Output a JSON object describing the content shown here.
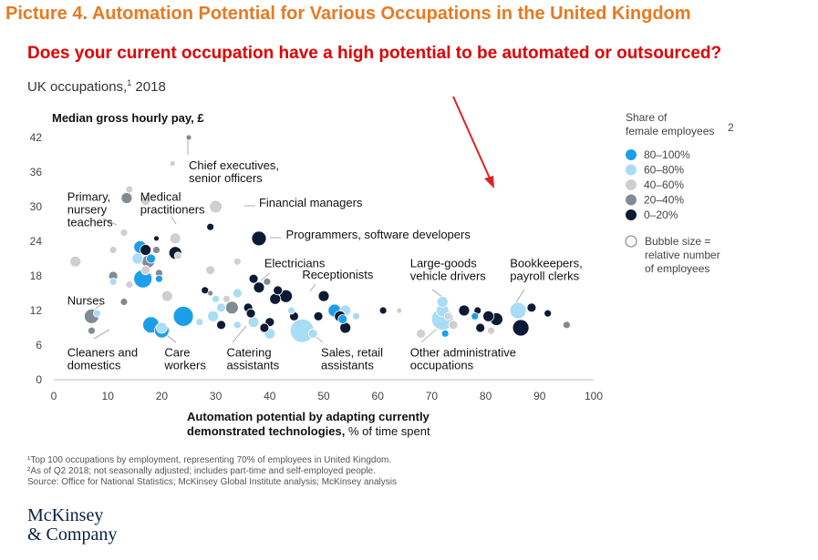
{
  "picture_title": "Picture 4. Automation Potential for Various Occupations in the United Kingdom",
  "question": "Does your current occupation have a high potential to be automated or outsourced?",
  "subtitle": {
    "text": "UK occupations,",
    "sup": "1",
    "year": " 2018"
  },
  "colors": {
    "title": "#e8791f",
    "question": "#e00000",
    "arrow": "#e02020",
    "bins": {
      "80-100": "#1d9ee8",
      "60-80": "#a9dcf5",
      "40-60": "#cfcfcf",
      "20-40": "#838b92",
      "0-20": "#0c1b33"
    }
  },
  "chart_data": {
    "type": "scatter",
    "subtype": "bubble",
    "title": "",
    "ylabel": "Median gross hourly pay, £",
    "xlabel_bold_line1": "Automation potential by adapting currently",
    "xlabel_bold_line2": "demonstrated technologies,",
    "xlabel_rest": " % of time spent",
    "xlim": [
      0,
      100
    ],
    "ylim": [
      0,
      42
    ],
    "xticks": [
      "0",
      "10",
      "20",
      "30",
      "40",
      "50",
      "60",
      "70",
      "80",
      "90",
      "100"
    ],
    "yticks": [
      "0",
      "6",
      "12",
      "18",
      "24",
      "30",
      "36",
      "42"
    ],
    "grid": false,
    "legend": {
      "title_line1": "Share of",
      "title_line2": "female employees",
      "title_sup": "2",
      "placement": "right",
      "entries": [
        {
          "label": "80–100%",
          "bin": "80-100"
        },
        {
          "label": "60–80%",
          "bin": "60-80"
        },
        {
          "label": "40–60%",
          "bin": "40-60"
        },
        {
          "label": "20–40%",
          "bin": "20-40"
        },
        {
          "label": "0–20%",
          "bin": "0-20"
        }
      ],
      "size_note": [
        "Bubble size =",
        "relative number",
        "of employees"
      ]
    },
    "annotations": [
      {
        "lines": [
          "Chief executives,",
          "senior officers"
        ],
        "x": 25,
        "y": 36.5
      },
      {
        "lines": [
          "Primary,",
          "nursery",
          "teachers"
        ],
        "x": 2.5,
        "y": 31
      },
      {
        "lines": [
          "Medical",
          "practitioners"
        ],
        "x": 16,
        "y": 31
      },
      {
        "lines": [
          "Financial managers"
        ],
        "x": 38,
        "y": 30
      },
      {
        "lines": [
          "Programmers, software developers"
        ],
        "x": 43,
        "y": 24.5
      },
      {
        "lines": [
          "Electricians"
        ],
        "x": 39,
        "y": 19.5
      },
      {
        "lines": [
          "Receptionists"
        ],
        "x": 46,
        "y": 17.5
      },
      {
        "lines": [
          "Large-goods",
          "vehicle drivers"
        ],
        "x": 66,
        "y": 19.5
      },
      {
        "lines": [
          "Bookkeepers,",
          "payroll clerks"
        ],
        "x": 84.5,
        "y": 19.5
      },
      {
        "lines": [
          "Nurses"
        ],
        "x": 2.5,
        "y": 13
      },
      {
        "lines": [
          "Cleaners and",
          "domestics"
        ],
        "x": 2.5,
        "y": 4
      },
      {
        "lines": [
          "Care",
          "workers"
        ],
        "x": 20.5,
        "y": 4
      },
      {
        "lines": [
          "Catering",
          "assistants"
        ],
        "x": 32,
        "y": 4
      },
      {
        "lines": [
          "Sales, retail",
          "assistants"
        ],
        "x": 49.5,
        "y": 4
      },
      {
        "lines": [
          "Other administrative",
          "occupations"
        ],
        "x": 66,
        "y": 4
      }
    ],
    "points": [
      {
        "x": 25,
        "y": 42,
        "r": 3,
        "bin": "20-40"
      },
      {
        "x": 22,
        "y": 37.5,
        "r": 3,
        "bin": "40-60"
      },
      {
        "x": 14,
        "y": 33,
        "r": 4,
        "bin": "40-60"
      },
      {
        "x": 13.5,
        "y": 31.5,
        "r": 6,
        "bin": "20-40"
      },
      {
        "x": 17,
        "y": 31,
        "r": 5,
        "bin": "40-60"
      },
      {
        "x": 30,
        "y": 30,
        "r": 7,
        "bin": "40-60"
      },
      {
        "x": 29,
        "y": 26.5,
        "r": 4,
        "bin": "0-20"
      },
      {
        "x": 13,
        "y": 25.5,
        "r": 4,
        "bin": "40-60"
      },
      {
        "x": 22.5,
        "y": 24.5,
        "r": 6,
        "bin": "40-60"
      },
      {
        "x": 19,
        "y": 24.5,
        "r": 3,
        "bin": "0-20"
      },
      {
        "x": 38,
        "y": 24.5,
        "r": 8,
        "bin": "0-20"
      },
      {
        "x": 16,
        "y": 23,
        "r": 7,
        "bin": "80-100"
      },
      {
        "x": 11,
        "y": 22.5,
        "r": 4,
        "bin": "40-60"
      },
      {
        "x": 17,
        "y": 22.5,
        "r": 6,
        "bin": "0-20"
      },
      {
        "x": 19,
        "y": 22.5,
        "r": 4,
        "bin": "20-40"
      },
      {
        "x": 22.5,
        "y": 22,
        "r": 7,
        "bin": "0-20"
      },
      {
        "x": 23,
        "y": 21.5,
        "r": 4,
        "bin": "40-60"
      },
      {
        "x": 15.5,
        "y": 21,
        "r": 6,
        "bin": "60-80"
      },
      {
        "x": 18,
        "y": 21,
        "r": 5,
        "bin": "80-100"
      },
      {
        "x": 4,
        "y": 20.5,
        "r": 6,
        "bin": "40-60"
      },
      {
        "x": 17.5,
        "y": 20.5,
        "r": 7,
        "bin": "20-40"
      },
      {
        "x": 34,
        "y": 20.5,
        "r": 4,
        "bin": "40-60"
      },
      {
        "x": 17,
        "y": 19,
        "r": 5,
        "bin": "40-60"
      },
      {
        "x": 29,
        "y": 19,
        "r": 5,
        "bin": "40-60"
      },
      {
        "x": 19.5,
        "y": 18.5,
        "r": 4,
        "bin": "20-40"
      },
      {
        "x": 11,
        "y": 18,
        "r": 5,
        "bin": "20-40"
      },
      {
        "x": 16.5,
        "y": 17.5,
        "r": 10,
        "bin": "80-100"
      },
      {
        "x": 19.5,
        "y": 17.5,
        "r": 4,
        "bin": "80-100"
      },
      {
        "x": 11,
        "y": 17,
        "r": 4,
        "bin": "60-80"
      },
      {
        "x": 37,
        "y": 17.5,
        "r": 5,
        "bin": "0-20"
      },
      {
        "x": 39.5,
        "y": 17,
        "r": 4,
        "bin": "20-40"
      },
      {
        "x": 14,
        "y": 16.5,
        "r": 4,
        "bin": "40-60"
      },
      {
        "x": 38,
        "y": 16,
        "r": 6,
        "bin": "0-20"
      },
      {
        "x": 41.5,
        "y": 15.5,
        "r": 5,
        "bin": "0-20"
      },
      {
        "x": 28,
        "y": 15.5,
        "r": 4,
        "bin": "0-20"
      },
      {
        "x": 29,
        "y": 15,
        "r": 3,
        "bin": "20-40"
      },
      {
        "x": 43,
        "y": 14.5,
        "r": 7,
        "bin": "0-20"
      },
      {
        "x": 50,
        "y": 14.5,
        "r": 6,
        "bin": "0-20"
      },
      {
        "x": 34,
        "y": 15,
        "r": 5,
        "bin": "60-80"
      },
      {
        "x": 21,
        "y": 14.5,
        "r": 6,
        "bin": "40-60"
      },
      {
        "x": 41,
        "y": 14,
        "r": 6,
        "bin": "0-20"
      },
      {
        "x": 32,
        "y": 14,
        "r": 4,
        "bin": "40-60"
      },
      {
        "x": 30,
        "y": 14,
        "r": 4,
        "bin": "60-80"
      },
      {
        "x": 13,
        "y": 13.5,
        "r": 4,
        "bin": "20-40"
      },
      {
        "x": 72,
        "y": 13.5,
        "r": 6,
        "bin": "60-80"
      },
      {
        "x": 33,
        "y": 12.5,
        "r": 7,
        "bin": "20-40"
      },
      {
        "x": 36,
        "y": 12.5,
        "r": 5,
        "bin": "0-20"
      },
      {
        "x": 31,
        "y": 12.5,
        "r": 5,
        "bin": "60-80"
      },
      {
        "x": 44,
        "y": 12,
        "r": 4,
        "bin": "60-80"
      },
      {
        "x": 52,
        "y": 12,
        "r": 7,
        "bin": "80-100"
      },
      {
        "x": 54,
        "y": 12,
        "r": 6,
        "bin": "60-80"
      },
      {
        "x": 64,
        "y": 12,
        "r": 3,
        "bin": "40-60"
      },
      {
        "x": 61,
        "y": 12,
        "r": 4,
        "bin": "0-20"
      },
      {
        "x": 72,
        "y": 12,
        "r": 7,
        "bin": "60-80"
      },
      {
        "x": 76,
        "y": 12,
        "r": 6,
        "bin": "0-20"
      },
      {
        "x": 78.5,
        "y": 12,
        "r": 4,
        "bin": "0-20"
      },
      {
        "x": 86,
        "y": 12,
        "r": 9,
        "bin": "60-80"
      },
      {
        "x": 88.5,
        "y": 12.5,
        "r": 5,
        "bin": "0-20"
      },
      {
        "x": 91.5,
        "y": 11.5,
        "r": 4,
        "bin": "0-20"
      },
      {
        "x": 36.5,
        "y": 11.5,
        "r": 5,
        "bin": "0-20"
      },
      {
        "x": 44.5,
        "y": 11,
        "r": 5,
        "bin": "0-20"
      },
      {
        "x": 49,
        "y": 11,
        "r": 5,
        "bin": "0-20"
      },
      {
        "x": 53,
        "y": 11,
        "r": 6,
        "bin": "0-20"
      },
      {
        "x": 53.5,
        "y": 10.5,
        "r": 5,
        "bin": "80-100"
      },
      {
        "x": 56,
        "y": 11,
        "r": 4,
        "bin": "60-80"
      },
      {
        "x": 7,
        "y": 11,
        "r": 8,
        "bin": "20-40"
      },
      {
        "x": 8,
        "y": 11.5,
        "r": 4,
        "bin": "60-80"
      },
      {
        "x": 24,
        "y": 11,
        "r": 11,
        "bin": "80-100"
      },
      {
        "x": 29.5,
        "y": 11,
        "r": 6,
        "bin": "60-80"
      },
      {
        "x": 73,
        "y": 11,
        "r": 4,
        "bin": "40-60"
      },
      {
        "x": 72,
        "y": 10.5,
        "r": 12,
        "bin": "60-80"
      },
      {
        "x": 78,
        "y": 11,
        "r": 4,
        "bin": "80-100"
      },
      {
        "x": 80.5,
        "y": 11,
        "r": 6,
        "bin": "0-20"
      },
      {
        "x": 82,
        "y": 10.5,
        "r": 7,
        "bin": "0-20"
      },
      {
        "x": 27,
        "y": 10,
        "r": 4,
        "bin": "60-80"
      },
      {
        "x": 31,
        "y": 9.5,
        "r": 5,
        "bin": "0-20"
      },
      {
        "x": 34,
        "y": 9.5,
        "r": 4,
        "bin": "60-80"
      },
      {
        "x": 37,
        "y": 10,
        "r": 6,
        "bin": "60-80"
      },
      {
        "x": 40,
        "y": 10,
        "r": 5,
        "bin": "0-20"
      },
      {
        "x": 18,
        "y": 9.5,
        "r": 9,
        "bin": "80-100"
      },
      {
        "x": 20,
        "y": 9,
        "r": 6,
        "bin": "60-80"
      },
      {
        "x": 20,
        "y": 8.5,
        "r": 8,
        "bin": "80-100"
      },
      {
        "x": 74,
        "y": 9.5,
        "r": 5,
        "bin": "40-60"
      },
      {
        "x": 39,
        "y": 9,
        "r": 5,
        "bin": "0-20"
      },
      {
        "x": 54,
        "y": 9,
        "r": 6,
        "bin": "0-20"
      },
      {
        "x": 79,
        "y": 9,
        "r": 5,
        "bin": "0-20"
      },
      {
        "x": 81,
        "y": 8.5,
        "r": 4,
        "bin": "40-60"
      },
      {
        "x": 86.5,
        "y": 9,
        "r": 9,
        "bin": "0-20"
      },
      {
        "x": 95,
        "y": 9.5,
        "r": 4,
        "bin": "20-40"
      },
      {
        "x": 7,
        "y": 8.5,
        "r": 4,
        "bin": "20-40"
      },
      {
        "x": 46,
        "y": 8.5,
        "r": 13,
        "bin": "60-80"
      },
      {
        "x": 48,
        "y": 8,
        "r": 5,
        "bin": "60-80"
      },
      {
        "x": 40,
        "y": 8,
        "r": 6,
        "bin": "60-80"
      },
      {
        "x": 68,
        "y": 8,
        "r": 5,
        "bin": "40-60"
      },
      {
        "x": 72.5,
        "y": 8,
        "r": 4,
        "bin": "80-100"
      }
    ]
  },
  "footnotes": [
    "¹Top 100 occupations by employment, representing 70% of employees in United Kingdom.",
    "²As of Q2 2018; not seasonally adjusted; includes part-time and self-employed people.",
    " Source: Office for National Statistics; McKinsey Global Institute analysis; McKinsey analysis"
  ],
  "logo": {
    "line1": "McKinsey",
    "line2": "& Company"
  }
}
